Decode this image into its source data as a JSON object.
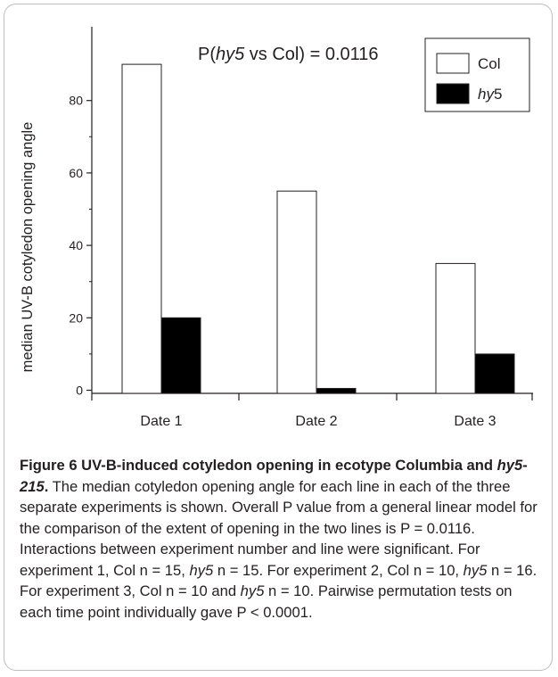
{
  "chart_data": {
    "type": "bar",
    "categories": [
      "Date 1",
      "Date 2",
      "Date 3"
    ],
    "series": [
      {
        "name": "Col",
        "values": [
          90,
          55,
          35
        ],
        "color": "#ffffff"
      },
      {
        "name": "hy5",
        "values": [
          20,
          0.5,
          10
        ],
        "color": "#000000"
      }
    ],
    "ylabel": "median UV-B cotyledon opening angle",
    "xlabel": "",
    "ylim": [
      -1,
      98
    ],
    "yticks": [
      0,
      20,
      40,
      60,
      80
    ],
    "annotation": {
      "prefix": "P(",
      "italic": "hy5",
      "suffix": " vs Col) = 0.0116"
    },
    "legend": {
      "placement": "top-right",
      "entries": [
        {
          "label": "Col",
          "italic": false
        },
        {
          "label_italic": "hy",
          "label_rest": "5"
        }
      ]
    }
  },
  "caption": {
    "fig_label": "Figure 6",
    "title_part1": " UV-B-induced cotyledon opening in ecotype Columbia and ",
    "title_italic": "hy5-215",
    "title_end": ".",
    "segments": [
      {
        "t": " The median cotyledon opening angle for each line in each of the three separate experiments is shown. Overall P value from a general linear model for the comparison of the extent of opening in the two lines is P = 0.0116. Interactions between experiment number and line were significant. For experiment 1, Col n = 15, "
      },
      {
        "i": "hy5"
      },
      {
        "t": " n = 15. For experiment 2, Col n = 10, "
      },
      {
        "i": "hy5"
      },
      {
        "t": " n = 16. For experiment 3, Col n = 10 and "
      },
      {
        "i": "hy5"
      },
      {
        "t": " n = 10. Pairwise permutation tests on each time point individually gave P < 0.0001."
      }
    ]
  }
}
